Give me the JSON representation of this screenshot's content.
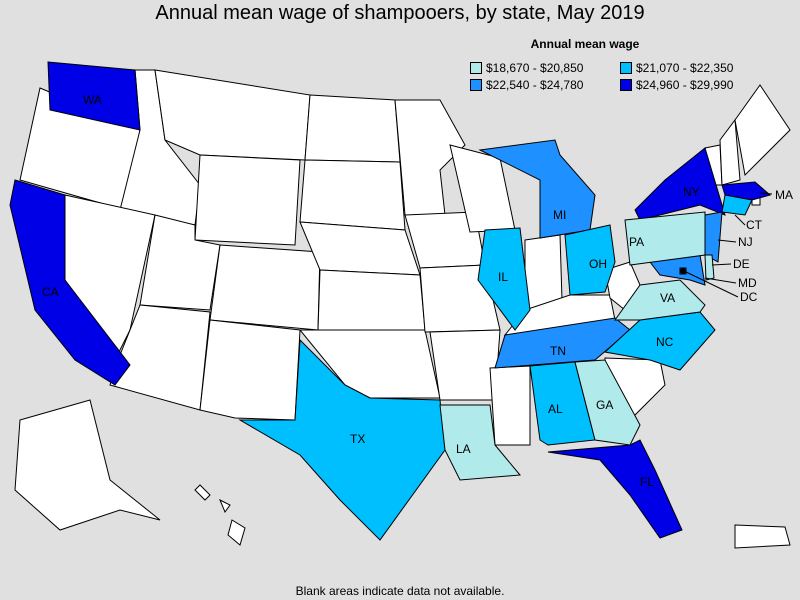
{
  "title": "Annual mean wage of shampooers, by state, May 2019",
  "legend": {
    "title": "Annual mean wage",
    "items": [
      {
        "label": "$18,670 - $20,850",
        "color": "#b0eaea"
      },
      {
        "label": "$21,070 - $22,350",
        "color": "#00bfff"
      },
      {
        "label": "$22,540 - $24,780",
        "color": "#1e90ff"
      },
      {
        "label": "$24,960 - $29,990",
        "color": "#0000e6"
      }
    ]
  },
  "blank_color": "#ffffff",
  "states": [
    {
      "abbr": "WA",
      "tier": 3
    },
    {
      "abbr": "CA",
      "tier": 3
    },
    {
      "abbr": "NY",
      "tier": 3
    },
    {
      "abbr": "MA",
      "tier": 3
    },
    {
      "abbr": "FL",
      "tier": 3
    },
    {
      "abbr": "MI",
      "tier": 2
    },
    {
      "abbr": "IL",
      "tier": 1
    },
    {
      "abbr": "TN",
      "tier": 2
    },
    {
      "abbr": "AL",
      "tier": 1
    },
    {
      "abbr": "OH",
      "tier": 1
    },
    {
      "abbr": "TX",
      "tier": 1
    },
    {
      "abbr": "NC",
      "tier": 1
    },
    {
      "abbr": "NJ",
      "tier": 2
    },
    {
      "abbr": "CT",
      "tier": 1
    },
    {
      "abbr": "MD",
      "tier": 2
    },
    {
      "abbr": "DE",
      "tier": 0
    },
    {
      "abbr": "DC",
      "tier": 1
    },
    {
      "abbr": "PA",
      "tier": 0
    },
    {
      "abbr": "VA",
      "tier": 0
    },
    {
      "abbr": "GA",
      "tier": 0
    },
    {
      "abbr": "LA",
      "tier": 0
    }
  ],
  "footnote": "Blank areas indicate data not available."
}
